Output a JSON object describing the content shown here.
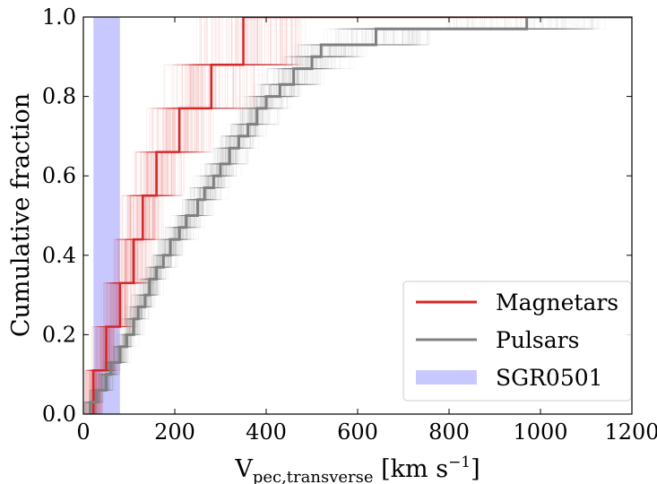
{
  "chart_data": {
    "type": "line",
    "xlabel": "V",
    "xlabel_sub": "pec,transverse",
    "xlabel_unit_pre": " [km s",
    "xlabel_unit_sup": "−1",
    "xlabel_unit_post": "]",
    "ylabel": "Cumulative fraction",
    "xlim": [
      0,
      1200
    ],
    "ylim": [
      0,
      1.0
    ],
    "xticks": [
      0,
      200,
      400,
      600,
      800,
      1000,
      1200
    ],
    "xtick_labels": [
      "0",
      "200",
      "400",
      "600",
      "800",
      "1000",
      "1200"
    ],
    "yticks": [
      0.0,
      0.2,
      0.4,
      0.6,
      0.8,
      1.0
    ],
    "ytick_labels": [
      "0.0",
      "0.2",
      "0.4",
      "0.6",
      "0.8",
      "1.0"
    ],
    "grid": false,
    "legend_position": "lower right",
    "shaded_band": {
      "name": "SGR0501",
      "x_range": [
        22,
        80
      ],
      "color": "#c8c8ff"
    },
    "series": [
      {
        "name": "Magnetars",
        "color": "#d62728",
        "step_x": [
          22,
          50,
          80,
          110,
          130,
          160,
          210,
          280,
          350,
          970
        ],
        "step_y": [
          0.11,
          0.22,
          0.33,
          0.44,
          0.55,
          0.66,
          0.77,
          0.88,
          1.0,
          1.0
        ]
      },
      {
        "name": "Pulsars",
        "color": "#7f7f7f",
        "step_x": [
          15,
          28,
          50,
          60,
          80,
          95,
          110,
          120,
          135,
          145,
          160,
          175,
          190,
          210,
          225,
          250,
          265,
          285,
          300,
          320,
          340,
          360,
          380,
          400,
          430,
          460,
          500,
          520,
          640,
          970
        ],
        "step_y": [
          0.03,
          0.06,
          0.1,
          0.13,
          0.17,
          0.2,
          0.24,
          0.27,
          0.3,
          0.34,
          0.37,
          0.4,
          0.44,
          0.47,
          0.5,
          0.54,
          0.57,
          0.6,
          0.63,
          0.67,
          0.7,
          0.73,
          0.77,
          0.8,
          0.83,
          0.87,
          0.9,
          0.93,
          0.97,
          1.0
        ]
      }
    ]
  }
}
